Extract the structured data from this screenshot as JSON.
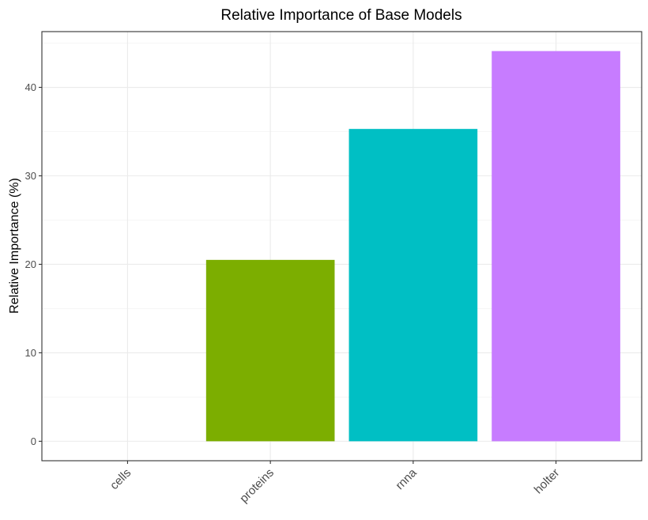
{
  "chart_data": {
    "type": "bar",
    "title": "Relative Importance of Base Models",
    "xlabel": "",
    "ylabel": "Relative Importance (%)",
    "categories": [
      "cells",
      "proteins",
      "rnna",
      "holter"
    ],
    "values": [
      0,
      20.5,
      35.3,
      44.1
    ],
    "colors": [
      "#F8766D",
      "#7CAE00",
      "#00BFC4",
      "#C77CFF"
    ],
    "ylim": [
      -2.2,
      46.3
    ],
    "yticks": [
      0,
      10,
      20,
      30,
      40
    ],
    "grid": true,
    "legend": "none"
  }
}
